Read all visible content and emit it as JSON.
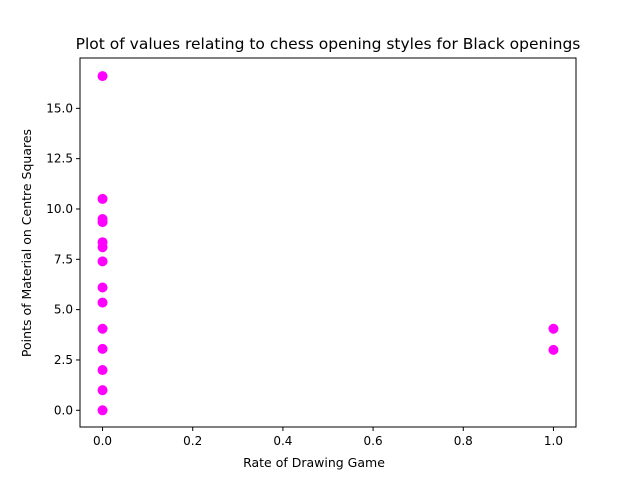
{
  "chart_data": {
    "type": "scatter",
    "title": "Plot of values relating to chess opening styles for Black openings",
    "xlabel": "Rate of Drawing Game",
    "ylabel": "Points of Material on Centre Squares",
    "xlim": [
      -0.05,
      1.05
    ],
    "ylim": [
      -0.83,
      17.5
    ],
    "xticks": [
      0.0,
      0.2,
      0.4,
      0.6,
      0.8,
      1.0
    ],
    "xtick_labels": [
      "0.0",
      "0.2",
      "0.4",
      "0.6",
      "0.8",
      "1.0"
    ],
    "yticks": [
      0.0,
      2.5,
      5.0,
      7.5,
      10.0,
      12.5,
      15.0
    ],
    "ytick_labels": [
      "0.0",
      "2.5",
      "5.0",
      "7.5",
      "10.0",
      "12.5",
      "15.0"
    ],
    "grid": false,
    "marker_color": "#ff00ff",
    "points": [
      {
        "x": 0.0,
        "y": 16.6
      },
      {
        "x": 0.0,
        "y": 10.5
      },
      {
        "x": 0.0,
        "y": 9.5
      },
      {
        "x": 0.0,
        "y": 9.35
      },
      {
        "x": 0.0,
        "y": 8.35
      },
      {
        "x": 0.0,
        "y": 8.1
      },
      {
        "x": 0.0,
        "y": 7.4
      },
      {
        "x": 0.0,
        "y": 6.1
      },
      {
        "x": 0.0,
        "y": 5.35
      },
      {
        "x": 0.0,
        "y": 4.05
      },
      {
        "x": 0.0,
        "y": 3.05
      },
      {
        "x": 0.0,
        "y": 2.0
      },
      {
        "x": 0.0,
        "y": 1.0
      },
      {
        "x": 0.0,
        "y": 0.0
      },
      {
        "x": 1.0,
        "y": 4.05
      },
      {
        "x": 1.0,
        "y": 3.0
      }
    ]
  }
}
